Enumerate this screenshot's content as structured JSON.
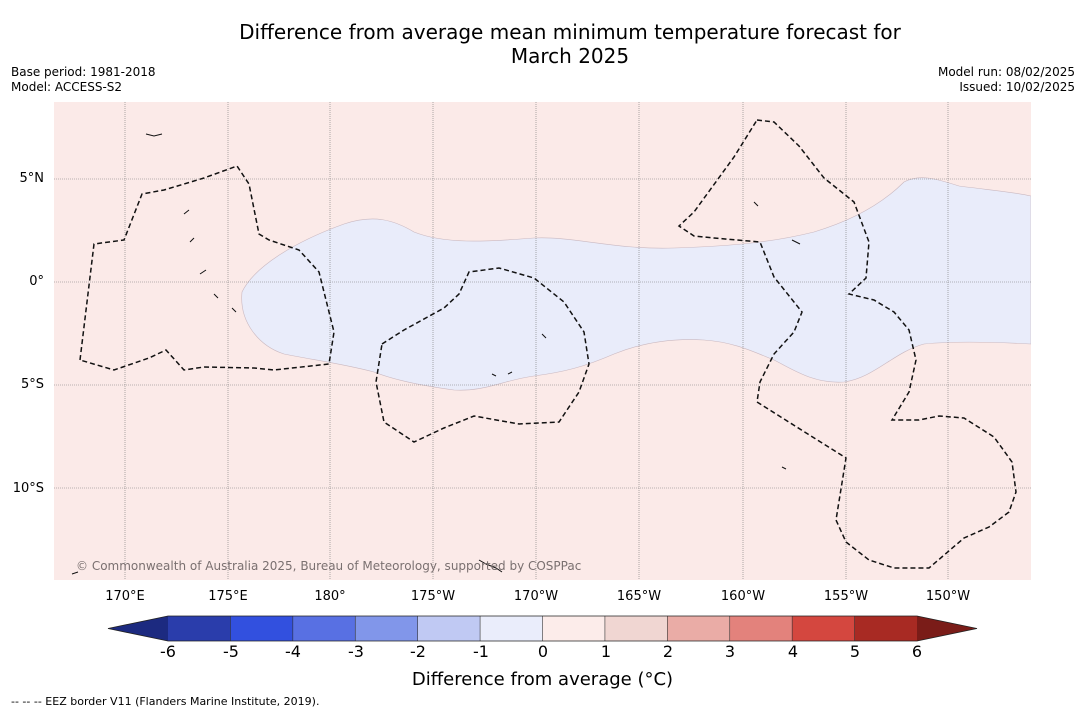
{
  "title": {
    "line1": "Difference from average mean minimum temperature forecast for",
    "line2": "March 2025"
  },
  "meta": {
    "base_period": "Base period: 1981-2018",
    "model": "Model: ACCESS-S2",
    "model_run": "Model run: 08/02/2025",
    "issued": "Issued: 10/02/2025"
  },
  "map": {
    "copyright": "© Commonwealth of Australia 2025, Bureau of Meteorology, supported by COSPPac",
    "lat_labels": [
      "5°N",
      "0°",
      "5°S",
      "10°S"
    ],
    "lon_labels": [
      "170°E",
      "175°E",
      "180°",
      "175°W",
      "170°W",
      "165°W",
      "160°W",
      "155°W",
      "150°W"
    ],
    "background_fill": "#fbeae8",
    "cool_anomaly_fill": "#e9ecfa"
  },
  "colorbar": {
    "ticks": [
      "-6",
      "-5",
      "-4",
      "-3",
      "-2",
      "-1",
      "0",
      "1",
      "2",
      "3",
      "4",
      "5",
      "6"
    ],
    "colors": [
      "#2a3dab",
      "#3250df",
      "#5870e3",
      "#8196ea",
      "#c0c9f3",
      "#eaedfb",
      "#fcecea",
      "#f0d6d2",
      "#eaaca6",
      "#e3827c",
      "#d4473f",
      "#a82a23"
    ],
    "under_color": "#1c2a80",
    "over_color": "#7a1c18",
    "label": "Difference from average (°C)"
  },
  "footer": "-- -- -- EEZ border V11 (Flanders Marine Institute, 2019)."
}
